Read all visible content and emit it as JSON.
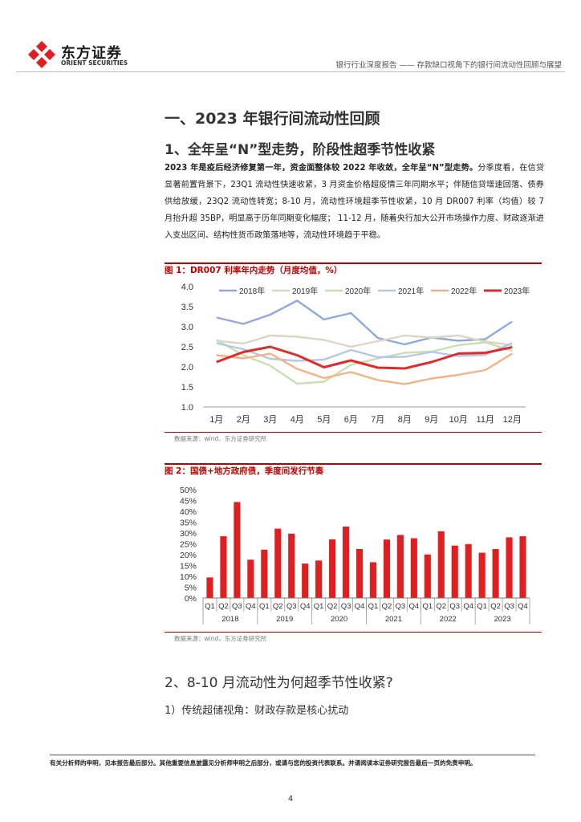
{
  "header": {
    "brand_cn": "东方证券",
    "brand_en": "ORIENT SECURITIES",
    "report_title": "银行行业深度报告 —— 存款缺口视角下的银行间流动性回顾与展望"
  },
  "section1": {
    "heading": "一、2023 年银行间流动性回顾",
    "subheading": "1、全年呈“N”型走势，阶段性超季节性收紧",
    "para_bold": "2023 年是疫后经济修复第一年，资金面整体较 2022 年收敛，全年呈“N”型走势。",
    "para_rest": "分季度看，在信贷显著前置背景下，23Q1 流动性快速收紧，3 月资金价格超疫情三年同期水平；伴随信贷增速回落、债券供给放缓，23Q2 流动性转宽；8-10 月，流动性环境超季节性收紧，10 月 DR007 利率（均值）较 7 月抬升超 35BP，明显高于历年同期变化幅度； 11-12 月，随着央行加大公开市场操作力度、财政逐渐进入支出区间、结构性货币政策落地等，流动性环境趋于平稳。"
  },
  "figure1": {
    "title": "图 1：DR007 利率年内走势（月度均值，%）",
    "source": "数据来源：wind、东方证券研究所"
  },
  "figure2": {
    "title": "图 2：国债+地方政府债，季度间发行节奏",
    "source": "数据来源：wind，东方证券研究所"
  },
  "section2": {
    "heading": "2、8-10 月流动性为何超季节性收紧?",
    "subheading": "1）传统超储视角：财政存款是核心扰动"
  },
  "footer": {
    "disclaimer": "有关分析师的申明，见本报告最后部分。其他重要信息披露见分析师申明之后部分，或请与您的投资代表联系。并请阅读本证券研究报告最后一页的免责申明。",
    "page_number": "4"
  },
  "chart_data": [
    {
      "type": "line",
      "categories": [
        "1月",
        "2月",
        "3月",
        "4月",
        "5月",
        "6月",
        "7月",
        "8月",
        "9月",
        "10月",
        "11月",
        "12月"
      ],
      "ylim": [
        1.0,
        4.0
      ],
      "yticks": [
        "1.0",
        "1.5",
        "2.0",
        "2.5",
        "3.0",
        "3.5",
        "4.0"
      ],
      "legend_position": "top",
      "series": [
        {
          "name": "2018年",
          "color": "#8ea9db",
          "values": [
            3.23,
            3.07,
            3.3,
            3.65,
            3.18,
            3.34,
            2.72,
            2.56,
            2.73,
            2.65,
            2.69,
            3.13
          ]
        },
        {
          "name": "2019年",
          "color": "#ddd5c3",
          "values": [
            2.65,
            2.58,
            2.78,
            2.75,
            2.67,
            2.5,
            2.64,
            2.78,
            2.73,
            2.78,
            2.63,
            2.54
          ]
        },
        {
          "name": "2020年",
          "color": "#c6e0b4",
          "values": [
            2.67,
            2.29,
            2.03,
            1.58,
            1.63,
            2.05,
            2.21,
            2.35,
            2.38,
            2.54,
            2.61,
            2.4
          ]
        },
        {
          "name": "2021年",
          "color": "#b4c7e7",
          "values": [
            2.59,
            2.44,
            2.2,
            2.15,
            2.18,
            2.42,
            2.24,
            2.25,
            2.37,
            2.27,
            2.3,
            2.59
          ]
        },
        {
          "name": "2022年",
          "color": "#f4b183",
          "values": [
            2.29,
            2.21,
            2.33,
            1.95,
            1.72,
            1.87,
            1.67,
            1.57,
            1.71,
            1.8,
            1.92,
            2.33
          ]
        },
        {
          "name": "2023年",
          "color": "#e02b2b",
          "values": [
            2.12,
            2.37,
            2.5,
            2.29,
            1.99,
            2.16,
            1.98,
            1.96,
            2.12,
            2.33,
            2.35,
            2.49
          ]
        }
      ]
    },
    {
      "type": "bar",
      "quarters": [
        "Q1",
        "Q2",
        "Q3",
        "Q4"
      ],
      "years": [
        "2018",
        "2019",
        "2020",
        "2021",
        "2022",
        "2023"
      ],
      "ylim": [
        0,
        50
      ],
      "yticks": [
        "0%",
        "5%",
        "10%",
        "15%",
        "20%",
        "25%",
        "30%",
        "35%",
        "40%",
        "45%",
        "50%"
      ],
      "bar_color": "#e02020",
      "values": [
        9.5,
        28.5,
        44.3,
        17.7,
        22.3,
        32.0,
        29.7,
        15.9,
        17.3,
        27.1,
        33.0,
        22.6,
        16.5,
        27.0,
        29.1,
        27.6,
        20.1,
        30.8,
        24.2,
        24.9,
        20.9,
        22.6,
        28.0,
        28.5
      ]
    }
  ]
}
